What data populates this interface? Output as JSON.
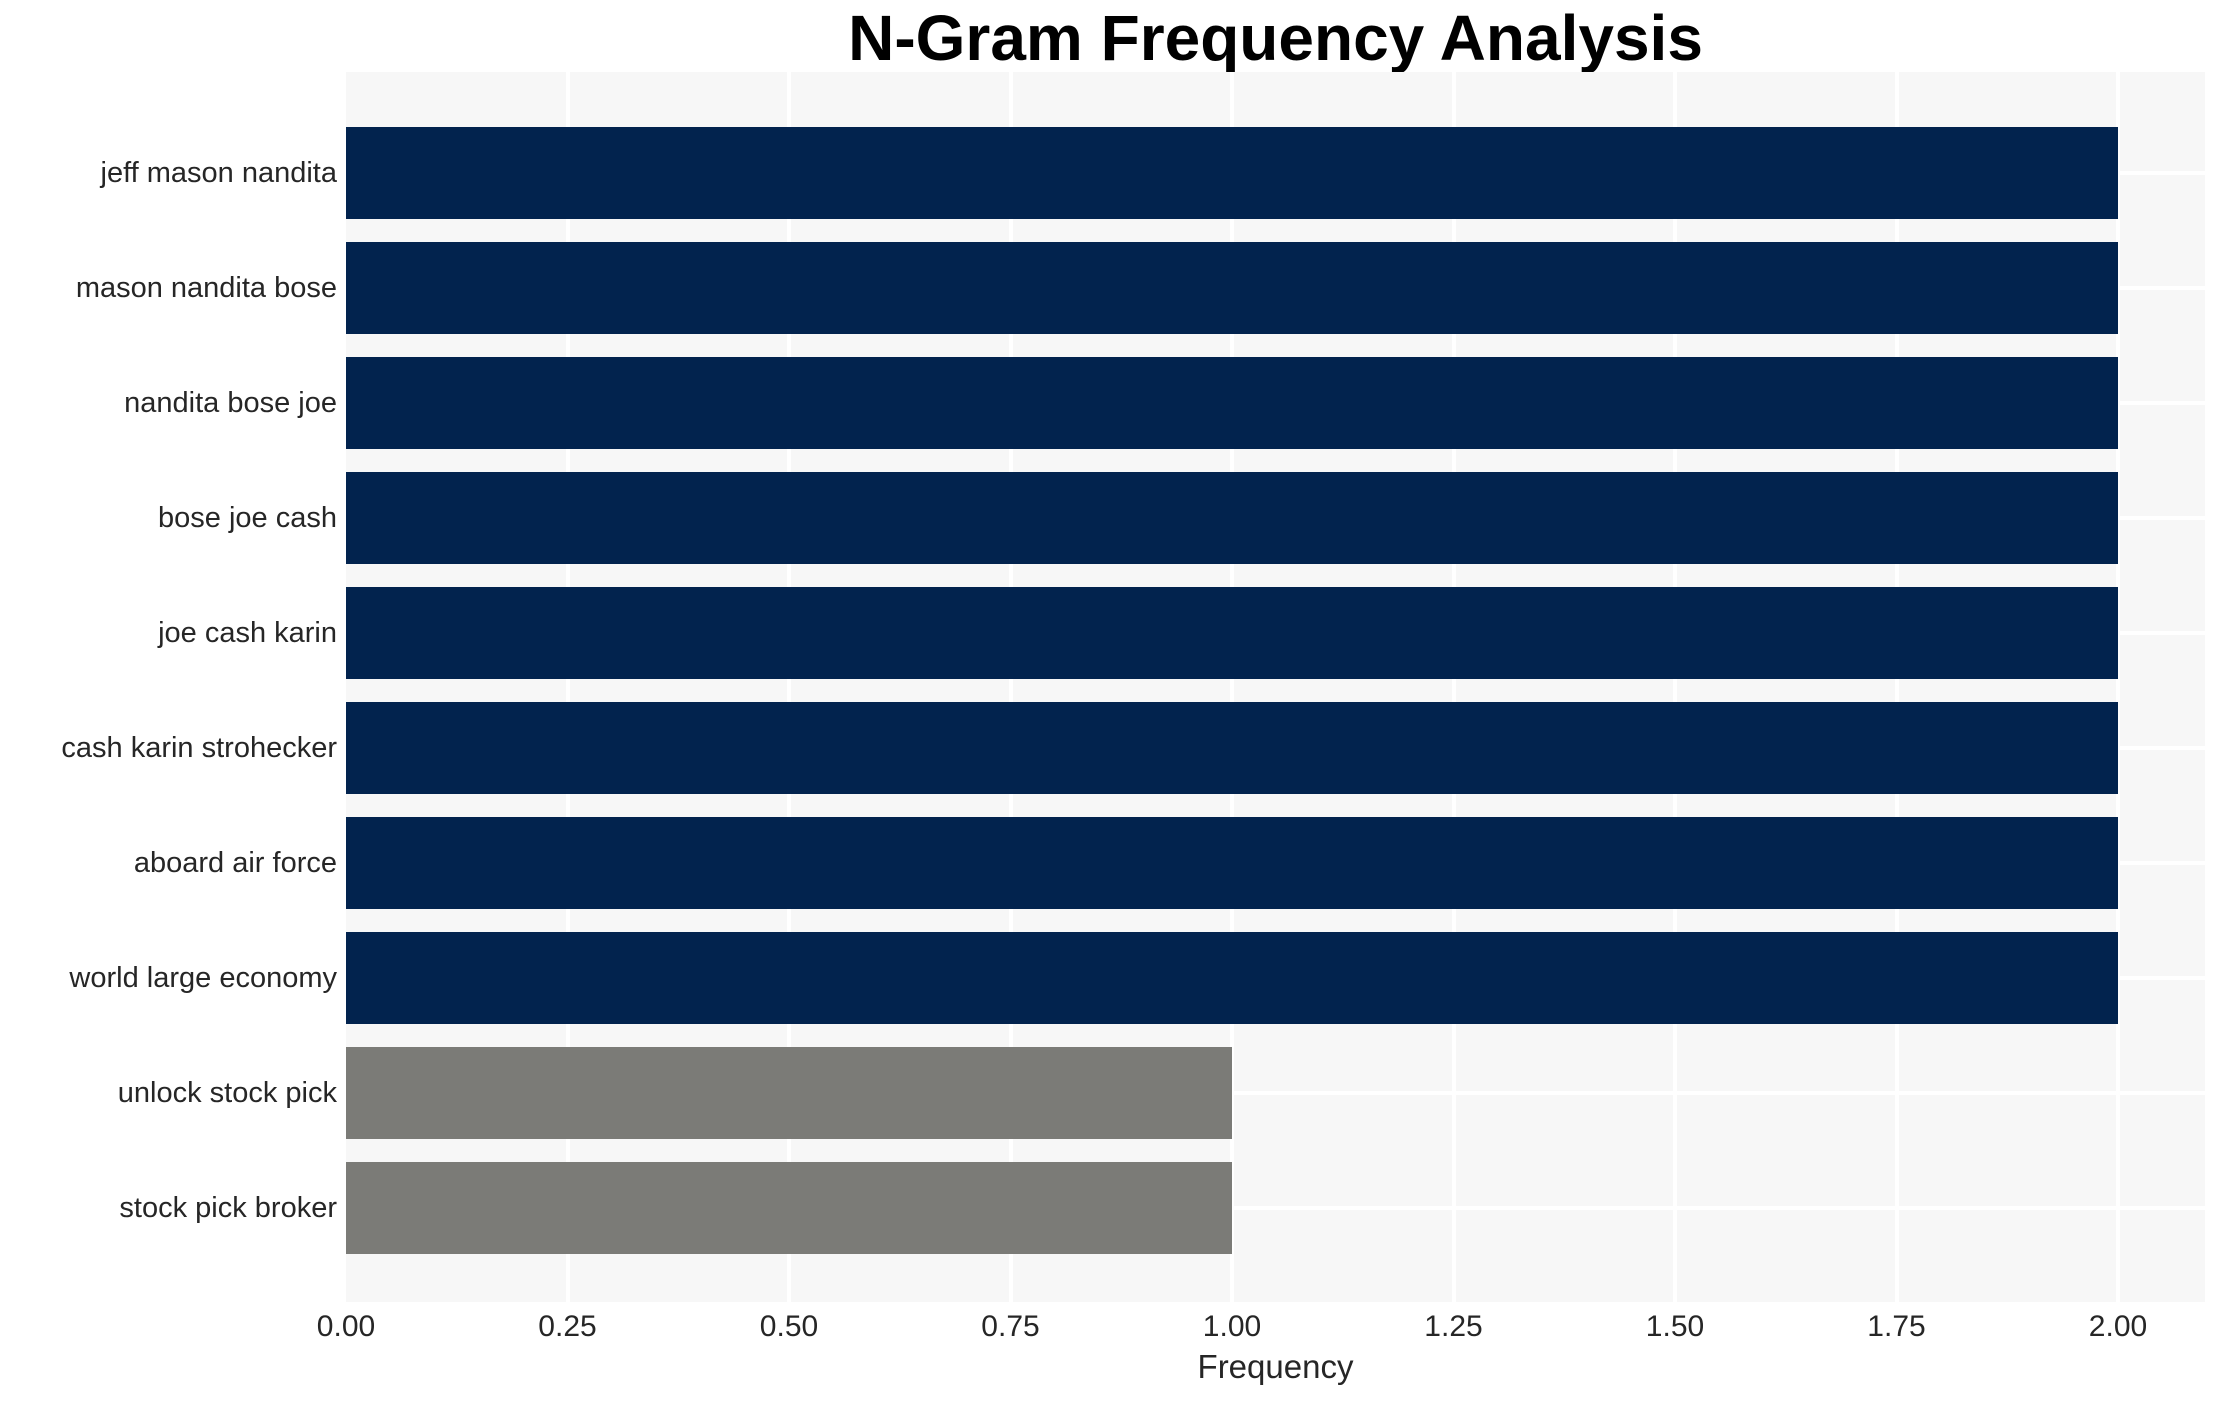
{
  "chart_data": {
    "type": "bar",
    "orientation": "horizontal",
    "title": "N-Gram Frequency Analysis",
    "xlabel": "Frequency",
    "ylabel": "",
    "categories": [
      "jeff mason nandita",
      "mason nandita bose",
      "nandita bose joe",
      "bose joe cash",
      "joe cash karin",
      "cash karin strohecker",
      "aboard air force",
      "world large economy",
      "unlock stock pick",
      "stock pick broker"
    ],
    "values": [
      2,
      2,
      2,
      2,
      2,
      2,
      2,
      2,
      1,
      1
    ],
    "bar_colors": [
      "#02234e",
      "#02234e",
      "#02234e",
      "#02234e",
      "#02234e",
      "#02234e",
      "#02234e",
      "#02234e",
      "#7b7b77",
      "#7b7b77"
    ],
    "xlim": [
      0,
      2.098
    ],
    "xticks": [
      {
        "value": 0.0,
        "label": "0.00"
      },
      {
        "value": 0.25,
        "label": "0.25"
      },
      {
        "value": 0.5,
        "label": "0.50"
      },
      {
        "value": 0.75,
        "label": "0.75"
      },
      {
        "value": 1.0,
        "label": "1.00"
      },
      {
        "value": 1.25,
        "label": "1.25"
      },
      {
        "value": 1.5,
        "label": "1.50"
      },
      {
        "value": 1.75,
        "label": "1.75"
      },
      {
        "value": 2.0,
        "label": "2.00"
      }
    ],
    "grid": "both",
    "legend": "none",
    "colors": {
      "plot_background": "#f7f7f7",
      "figure_background": "#ffffff",
      "gridline": "#ffffff",
      "tick_text": "#262626",
      "title_text": "#000000",
      "bar_primary": "#02234e",
      "bar_secondary": "#7b7b77"
    }
  }
}
